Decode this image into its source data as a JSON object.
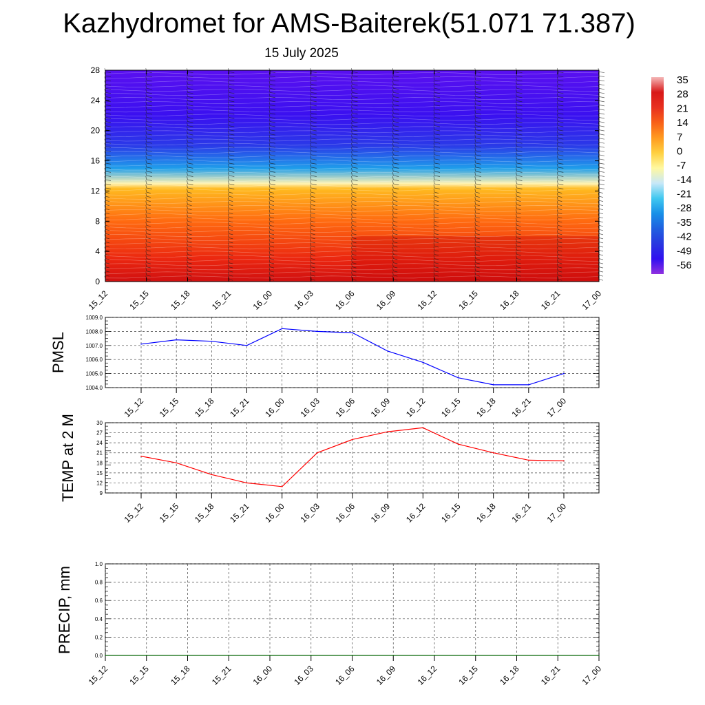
{
  "header": {
    "title": "Kazhydromet for AMS-Baiterek(51.071 71.387)",
    "date": "15 July 2025"
  },
  "chart_data": [
    {
      "type": "heatmap",
      "name": "vertical-temperature-cross-section",
      "x_ticks": [
        "15_12",
        "15_15",
        "15_18",
        "15_21",
        "16_00",
        "16_03",
        "16_06",
        "16_09",
        "16_12",
        "16_15",
        "16_18",
        "16_21",
        "17_00"
      ],
      "y_ticks": [
        "0",
        "4",
        "8",
        "12",
        "16",
        "20",
        "24",
        "28"
      ],
      "ylim": [
        0,
        28
      ],
      "colorbar": {
        "labels": [
          "35",
          "28",
          "21",
          "14",
          "7",
          "0",
          "-7",
          "-14",
          "-21",
          "-28",
          "-35",
          "-42",
          "-49",
          "-56"
        ],
        "colors": [
          "#f5b8b8",
          "#d81818",
          "#e83020",
          "#f86018",
          "#ff9a20",
          "#ffd040",
          "#fff8a0",
          "#c8e8f8",
          "#40c8f0",
          "#1890e8",
          "#2060e0",
          "#2838e0",
          "#3010f0",
          "#9030e0"
        ]
      },
      "approx_profile": [
        {
          "h": 0,
          "temp": 22
        },
        {
          "h": 3,
          "temp": 17
        },
        {
          "h": 8,
          "temp": 10
        },
        {
          "h": 12.3,
          "temp": -1
        },
        {
          "h": 13,
          "temp": -12
        },
        {
          "h": 15,
          "temp": -30
        },
        {
          "h": 18,
          "temp": -45
        },
        {
          "h": 22,
          "temp": -52
        },
        {
          "h": 28,
          "temp": -56
        }
      ]
    },
    {
      "type": "line",
      "name": "PMSL",
      "ylabel": "PMSL",
      "ylim": [
        1004.0,
        1009.0
      ],
      "y_ticks": [
        "1004.0",
        "1005.0",
        "1006.0",
        "1007.0",
        "1008.0",
        "1009.0"
      ],
      "categories": [
        "15_12",
        "15_15",
        "15_18",
        "15_21",
        "16_00",
        "16_03",
        "16_06",
        "16_09",
        "16_12",
        "16_15",
        "16_18",
        "16_21",
        "17_00"
      ],
      "series": [
        {
          "values": [
            1007.1,
            1007.4,
            1007.3,
            1007.0,
            1008.2,
            1008.0,
            1007.9,
            1006.6,
            1005.8,
            1004.7,
            1004.2,
            1004.2,
            1005.0
          ],
          "color": "#0000ff"
        }
      ]
    },
    {
      "type": "line",
      "name": "TEMP at 2 M",
      "ylabel": "TEMP at 2 M",
      "ylim": [
        9,
        30
      ],
      "y_ticks": [
        "9",
        "12",
        "15",
        "18",
        "21",
        "24",
        "27",
        "30"
      ],
      "categories": [
        "15_12",
        "15_15",
        "15_18",
        "15_21",
        "16_00",
        "16_03",
        "16_06",
        "16_09",
        "16_12",
        "16_15",
        "16_18",
        "16_21",
        "17_00"
      ],
      "series": [
        {
          "values": [
            20.0,
            18.0,
            14.5,
            12.0,
            10.9,
            21.0,
            25.0,
            27.3,
            28.5,
            23.6,
            21.0,
            18.8,
            18.6
          ],
          "color": "#ff0000"
        }
      ]
    },
    {
      "type": "line",
      "name": "PRECIP, mm",
      "ylabel": "PRECIP, mm",
      "ylim": [
        0.0,
        1.0
      ],
      "y_ticks": [
        "0.0",
        "0.2",
        "0.4",
        "0.6",
        "0.8",
        "1.0"
      ],
      "categories": [
        "15_12",
        "15_15",
        "15_18",
        "15_21",
        "16_00",
        "16_03",
        "16_06",
        "16_09",
        "16_12",
        "16_15",
        "16_18",
        "16_21",
        "17_00"
      ],
      "series": [
        {
          "values": [
            0,
            0,
            0,
            0,
            0,
            0,
            0,
            0,
            0,
            0,
            0,
            0,
            0
          ],
          "color": "#006400"
        }
      ]
    }
  ]
}
